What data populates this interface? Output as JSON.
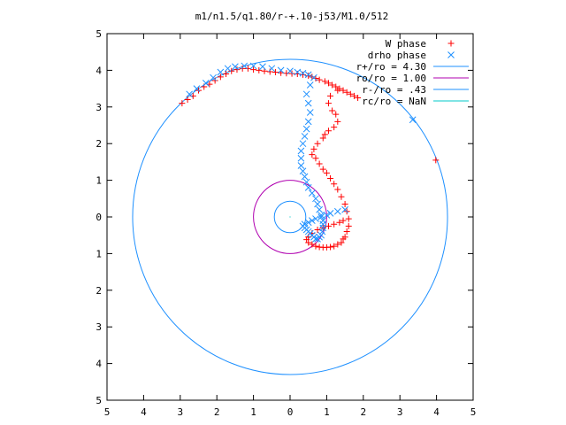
{
  "chart_data": {
    "type": "scatter",
    "title": "m1/n1.5/q1.80/r-+.10-j53/M1.0/512",
    "xlabel": "",
    "ylabel": "",
    "xlim": [
      -5,
      5
    ],
    "ylim": [
      -5,
      5
    ],
    "x_tick_values": [
      -5,
      -4,
      -3,
      -2,
      -1,
      0,
      1,
      2,
      3,
      4,
      5
    ],
    "x_tick_labels": [
      "5",
      "4",
      "3",
      "2",
      "1",
      "0",
      "1",
      "2",
      "3",
      "4",
      "5"
    ],
    "y_tick_values": [
      5,
      4,
      3,
      2,
      1,
      0,
      -1,
      -2,
      -3,
      -4,
      -5
    ],
    "y_tick_labels": [
      "5",
      "4",
      "3",
      "2",
      "1",
      "0",
      "1",
      "2",
      "3",
      "4",
      "5"
    ],
    "grid": false,
    "legend_position": "top-right",
    "series": [
      {
        "name": "W phase",
        "kind": "points",
        "marker": "plus",
        "color": "#ff0000",
        "x": [
          -2.95,
          -2.8,
          -2.65,
          -2.5,
          -2.35,
          -2.2,
          -2.05,
          -1.9,
          -1.75,
          -1.6,
          -1.45,
          -1.3,
          -1.15,
          -1.0,
          -0.85,
          -0.7,
          -0.55,
          -0.4,
          -0.25,
          -0.1,
          0.05,
          0.2,
          0.35,
          0.5,
          0.6,
          0.7,
          0.8,
          0.95,
          1.05,
          1.15,
          1.25,
          1.35,
          1.45,
          1.55,
          1.65,
          1.75,
          1.85,
          1.3,
          1.1,
          1.05,
          1.15,
          1.25,
          1.3,
          1.2,
          1.05,
          0.95,
          0.9,
          0.75,
          0.65,
          0.6,
          0.7,
          0.8,
          0.9,
          1.0,
          1.1,
          1.2,
          1.3,
          1.4,
          1.5,
          1.55,
          1.6,
          1.6,
          1.55,
          1.5,
          1.45,
          1.4,
          1.3,
          1.2,
          1.1,
          1.0,
          0.9,
          0.8,
          0.7,
          0.6,
          0.5,
          0.45,
          0.5,
          0.6,
          0.75,
          0.9,
          1.05,
          1.2,
          1.35,
          1.45,
          3.98
        ],
        "y": [
          3.1,
          3.2,
          3.3,
          3.45,
          3.55,
          3.62,
          3.72,
          3.82,
          3.9,
          3.98,
          4.02,
          4.05,
          4.05,
          4.02,
          4.0,
          3.98,
          3.96,
          3.95,
          3.93,
          3.92,
          3.91,
          3.9,
          3.88,
          3.85,
          3.82,
          3.78,
          3.74,
          3.7,
          3.65,
          3.6,
          3.55,
          3.5,
          3.45,
          3.4,
          3.35,
          3.3,
          3.25,
          3.45,
          3.3,
          3.1,
          2.9,
          2.8,
          2.6,
          2.45,
          2.35,
          2.25,
          2.15,
          2.0,
          1.85,
          1.7,
          1.6,
          1.45,
          1.3,
          1.2,
          1.05,
          0.9,
          0.75,
          0.55,
          0.35,
          0.15,
          -0.05,
          -0.25,
          -0.4,
          -0.55,
          -0.6,
          -0.7,
          -0.75,
          -0.8,
          -0.82,
          -0.83,
          -0.83,
          -0.82,
          -0.8,
          -0.75,
          -0.7,
          -0.62,
          -0.55,
          -0.45,
          -0.35,
          -0.3,
          -0.25,
          -0.2,
          -0.15,
          -0.1,
          1.55
        ]
      },
      {
        "name": "drho phase",
        "kind": "points",
        "marker": "cross",
        "color": "#1e90ff",
        "x": [
          -2.75,
          -2.55,
          -2.3,
          -2.1,
          -1.9,
          -1.7,
          -1.5,
          -1.25,
          -1.0,
          -0.75,
          -0.5,
          -0.25,
          0.0,
          0.2,
          0.35,
          0.5,
          0.65,
          0.55,
          0.45,
          0.5,
          0.55,
          0.5,
          0.45,
          0.4,
          0.35,
          0.3,
          0.3,
          0.3,
          0.35,
          0.4,
          0.45,
          0.5,
          0.6,
          0.7,
          0.75,
          0.8,
          0.85,
          0.9,
          0.9,
          0.9,
          0.88,
          0.85,
          0.8,
          0.75,
          0.7,
          0.65,
          0.6,
          0.55,
          0.5,
          0.45,
          0.4,
          0.35,
          0.4,
          0.5,
          0.6,
          0.7,
          0.85,
          1.0,
          1.1,
          1.3,
          1.5,
          3.35
        ],
        "y": [
          3.35,
          3.5,
          3.65,
          3.8,
          3.95,
          4.05,
          4.1,
          4.12,
          4.12,
          4.1,
          4.05,
          4.0,
          3.98,
          3.95,
          3.92,
          3.88,
          3.8,
          3.6,
          3.35,
          3.1,
          2.85,
          2.6,
          2.4,
          2.2,
          2.0,
          1.8,
          1.6,
          1.4,
          1.25,
          1.1,
          0.95,
          0.8,
          0.65,
          0.5,
          0.35,
          0.2,
          0.05,
          -0.1,
          -0.2,
          -0.3,
          -0.4,
          -0.5,
          -0.55,
          -0.6,
          -0.6,
          -0.55,
          -0.5,
          -0.45,
          -0.4,
          -0.35,
          -0.3,
          -0.25,
          -0.2,
          -0.15,
          -0.1,
          -0.05,
          0.0,
          0.05,
          0.1,
          0.15,
          0.2,
          2.65
        ]
      },
      {
        "name": "r+/ro = 4.30",
        "kind": "circle",
        "radius": 4.3,
        "color": "#1e90ff"
      },
      {
        "name": "ro/ro = 1.00",
        "kind": "circle",
        "radius": 1.0,
        "color": "#b000b0"
      },
      {
        "name": "r-/ro = .43",
        "kind": "circle",
        "radius": 0.43,
        "color": "#1e90ff"
      },
      {
        "name": "rc/ro = NaN",
        "kind": "circle",
        "radius": null,
        "color": "#00c8c8"
      }
    ]
  }
}
